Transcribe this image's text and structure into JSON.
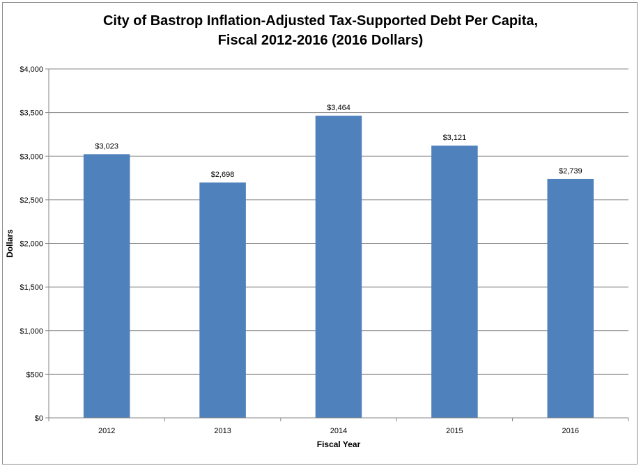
{
  "chart_data": {
    "type": "bar",
    "title_line1": "City of Bastrop Inflation-Adjusted Tax-Supported Debt Per Capita,",
    "title_line2": "Fiscal 2012-2016 (2016 Dollars)",
    "xlabel": "Fiscal Year",
    "ylabel": "Dollars",
    "categories": [
      "2012",
      "2013",
      "2014",
      "2015",
      "2016"
    ],
    "values": [
      3023,
      2698,
      3464,
      3121,
      2739
    ],
    "data_labels": [
      "$3,023",
      "$2,698",
      "$3,464",
      "$3,121",
      "$2,739"
    ],
    "ylim": [
      0,
      4000
    ],
    "yticks": [
      0,
      500,
      1000,
      1500,
      2000,
      2500,
      3000,
      3500,
      4000
    ],
    "ytick_labels": [
      "$0",
      "$500",
      "$1,000",
      "$1,500",
      "$2,000",
      "$2,500",
      "$3,000",
      "$3,500",
      "$4,000"
    ],
    "grid": true,
    "legend": "none",
    "bar_color": "#4f81bd",
    "grid_color": "#868686"
  }
}
